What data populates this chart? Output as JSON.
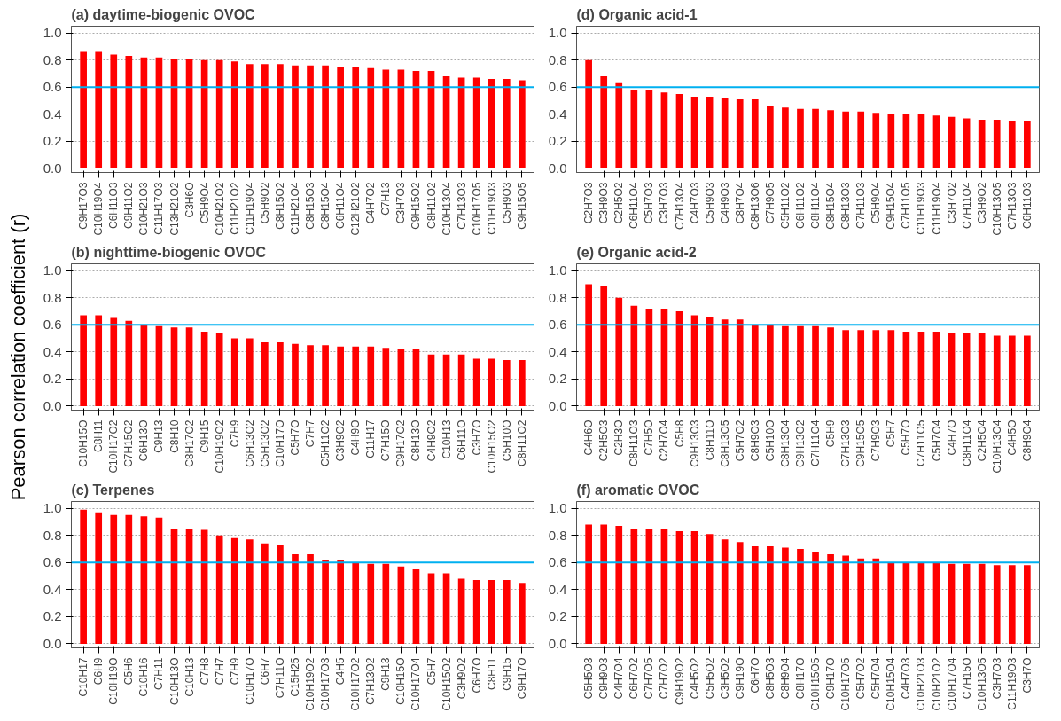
{
  "chart_data": [
    {
      "type": "bar",
      "title": "(a) daytime-biogenic OVOC",
      "color": "#ff0000",
      "categories": [
        "C9H17O3",
        "C10H19O4",
        "C6H11O3",
        "C9H11O2",
        "C10H21O3",
        "C11H17O3",
        "C13H21O2",
        "C3H6O",
        "C5H9O4",
        "C10H21O2",
        "C11H21O2",
        "C11H19O4",
        "C5H9O2",
        "C8H15O2",
        "C11H21O4",
        "C8H15O3",
        "C8H15O4",
        "C6H11O4",
        "C12H21O2",
        "C4H7O2",
        "C7H13",
        "C3H7O3",
        "C9H15O2",
        "C8H11O2",
        "C10H13O4",
        "C7H13O3",
        "C10H17O5",
        "C11H19O3",
        "C5H9O3",
        "C9H15O5"
      ],
      "values": [
        0.86,
        0.86,
        0.84,
        0.83,
        0.82,
        0.82,
        0.81,
        0.81,
        0.8,
        0.8,
        0.79,
        0.77,
        0.77,
        0.77,
        0.76,
        0.76,
        0.76,
        0.75,
        0.75,
        0.74,
        0.73,
        0.73,
        0.72,
        0.72,
        0.68,
        0.67,
        0.67,
        0.66,
        0.66,
        0.65
      ],
      "ylim": [
        -0.03,
        1.05
      ],
      "yticks": [
        {
          "value": 0,
          "label": "0.0"
        },
        {
          "value": 0.2,
          "label": "0.2"
        },
        {
          "value": 0.4,
          "label": "0.4"
        },
        {
          "value": 0.6,
          "label": "0.6"
        },
        {
          "value": 0.8,
          "label": "0.8"
        },
        {
          "value": 1,
          "label": "1.0"
        }
      ],
      "grid": "y",
      "ref_lines": [
        {
          "axis": "y",
          "value": 0.6,
          "color": "#00b0f0"
        }
      ]
    },
    {
      "type": "bar",
      "title": "(b) nighttime-biogenic OVOC",
      "ylabel": "Pearson correlation coefficient (r)",
      "color": "#ff0000",
      "categories": [
        "C10H15O",
        "C8H11",
        "C10H17O2",
        "C7H15O2",
        "C6H13O",
        "C9H13",
        "C8H10",
        "C8H17O2",
        "C9H15",
        "C10H19O2",
        "C7H9",
        "C6H13O2",
        "C5H13O2",
        "C10H17O",
        "C5H7O",
        "C7H7",
        "C5H11O2",
        "C3H9O2",
        "C4H9O",
        "C11H17",
        "C7H15O",
        "C9H17O2",
        "C8H13O",
        "C4H9O2",
        "C10H13",
        "C6H11O",
        "C3H7O",
        "C10H15O2",
        "C5H10O",
        "C8H11O2"
      ],
      "values": [
        0.67,
        0.67,
        0.65,
        0.63,
        0.6,
        0.59,
        0.58,
        0.58,
        0.55,
        0.54,
        0.5,
        0.5,
        0.47,
        0.47,
        0.46,
        0.45,
        0.45,
        0.44,
        0.44,
        0.44,
        0.43,
        0.42,
        0.42,
        0.38,
        0.38,
        0.38,
        0.35,
        0.35,
        0.34,
        0.34
      ],
      "ylim": [
        -0.03,
        1.05
      ],
      "yticks": [
        {
          "value": 0,
          "label": "0.0"
        },
        {
          "value": 0.2,
          "label": "0.2"
        },
        {
          "value": 0.4,
          "label": "0.4"
        },
        {
          "value": 0.6,
          "label": "0.6"
        },
        {
          "value": 0.8,
          "label": "0.8"
        },
        {
          "value": 1,
          "label": "1.0"
        }
      ],
      "grid": "y",
      "ref_lines": [
        {
          "axis": "y",
          "value": 0.6,
          "color": "#00b0f0"
        }
      ]
    },
    {
      "type": "bar",
      "title": "(c)   Terpenes",
      "color": "#ff0000",
      "categories": [
        "C10H17",
        "C6H9",
        "C10H19O",
        "C5H6",
        "C10H16",
        "C7H11",
        "C10H13O",
        "C10H13",
        "C7H8",
        "C7H7",
        "C7H9",
        "C10H17O",
        "C6H7",
        "C7H11O",
        "C15H25",
        "C10H19O2",
        "C10H17O3",
        "C4H5",
        "C10H17O2",
        "C7H13O2",
        "C9H13",
        "C10H15O",
        "C10H17O4",
        "C5H7",
        "C10H15O2",
        "C3H9O2",
        "C6H7O",
        "C8H11",
        "C9H15",
        "C9H17O"
      ],
      "values": [
        0.99,
        0.97,
        0.95,
        0.95,
        0.94,
        0.93,
        0.85,
        0.85,
        0.84,
        0.8,
        0.78,
        0.77,
        0.74,
        0.73,
        0.66,
        0.66,
        0.62,
        0.62,
        0.6,
        0.59,
        0.59,
        0.57,
        0.55,
        0.52,
        0.52,
        0.48,
        0.47,
        0.47,
        0.47,
        0.45
      ],
      "ylim": [
        -0.03,
        1.05
      ],
      "yticks": [
        {
          "value": 0,
          "label": "0.0"
        },
        {
          "value": 0.2,
          "label": "0.2"
        },
        {
          "value": 0.4,
          "label": "0.4"
        },
        {
          "value": 0.6,
          "label": "0.6"
        },
        {
          "value": 0.8,
          "label": "0.8"
        },
        {
          "value": 1,
          "label": "1.0"
        }
      ],
      "grid": "y",
      "ref_lines": [
        {
          "axis": "y",
          "value": 0.6,
          "color": "#00b0f0"
        }
      ]
    },
    {
      "type": "bar",
      "title": "(d)    Organic acid-1",
      "color": "#ff0000",
      "categories": [
        "C2H7O3",
        "C3H9O3",
        "C2H5O2",
        "C6H11O4",
        "C5H7O3",
        "C3H7O3",
        "C7H13O4",
        "C4H7O3",
        "C5H9O3",
        "C4H9O3",
        "C8H7O4",
        "C8H13O6",
        "C7H9O5",
        "C5H11O2",
        "C6H11O2",
        "C8H11O4",
        "C8H15O4",
        "C8H13O3",
        "C7H11O3",
        "C5H9O4",
        "C9H15O4",
        "C7H11O5",
        "C11H19O3",
        "C11H19O4",
        "C3H7O2",
        "C7H11O4",
        "C3H9O2",
        "C10H13O5",
        "C7H13O3",
        "C6H11O3"
      ],
      "values": [
        0.8,
        0.68,
        0.63,
        0.58,
        0.58,
        0.56,
        0.55,
        0.53,
        0.53,
        0.52,
        0.51,
        0.51,
        0.46,
        0.45,
        0.44,
        0.44,
        0.43,
        0.42,
        0.42,
        0.41,
        0.4,
        0.4,
        0.4,
        0.39,
        0.38,
        0.37,
        0.36,
        0.36,
        0.35,
        0.35
      ],
      "ylim": [
        -0.03,
        1.05
      ],
      "yticks": [
        {
          "value": 0,
          "label": "0.0"
        },
        {
          "value": 0.2,
          "label": "0.2"
        },
        {
          "value": 0.4,
          "label": "0.4"
        },
        {
          "value": 0.6,
          "label": "0.6"
        },
        {
          "value": 0.8,
          "label": "0.8"
        },
        {
          "value": 1,
          "label": "1.0"
        }
      ],
      "grid": "y",
      "ref_lines": [
        {
          "axis": "y",
          "value": 0.6,
          "color": "#00b0f0"
        }
      ]
    },
    {
      "type": "bar",
      "title": "(e)    Organic acid-2",
      "color": "#ff0000",
      "categories": [
        "C4H6O",
        "C2H5O3",
        "C2H3O",
        "C8H11O3",
        "C7H5O",
        "C2H7O4",
        "C5H8",
        "C9H13O3",
        "C8H11O",
        "C8H13O5",
        "C5H7O2",
        "C8H9O3",
        "C5H10O",
        "C8H13O4",
        "C9H13O2",
        "C7H11O4",
        "C5H9",
        "C7H13O3",
        "C9H15O5",
        "C7H9O3",
        "C5H7",
        "C5H7O",
        "C7H11O5",
        "C5H7O4",
        "C4H7O",
        "C8H11O4",
        "C2H5O4",
        "C10H13O4",
        "C4H5O",
        "C8H9O4"
      ],
      "values": [
        0.9,
        0.89,
        0.8,
        0.74,
        0.72,
        0.72,
        0.7,
        0.67,
        0.66,
        0.64,
        0.64,
        0.6,
        0.6,
        0.59,
        0.59,
        0.59,
        0.58,
        0.56,
        0.56,
        0.56,
        0.56,
        0.55,
        0.55,
        0.55,
        0.54,
        0.54,
        0.54,
        0.52,
        0.52,
        0.52
      ],
      "ylim": [
        -0.03,
        1.05
      ],
      "yticks": [
        {
          "value": 0,
          "label": "0.0"
        },
        {
          "value": 0.2,
          "label": "0.2"
        },
        {
          "value": 0.4,
          "label": "0.4"
        },
        {
          "value": 0.6,
          "label": "0.6"
        },
        {
          "value": 0.8,
          "label": "0.8"
        },
        {
          "value": 1,
          "label": "1.0"
        }
      ],
      "grid": "y",
      "ref_lines": [
        {
          "axis": "y",
          "value": 0.6,
          "color": "#00b0f0"
        }
      ]
    },
    {
      "type": "bar",
      "title": "(f) aromatic OVOC",
      "color": "#ff0000",
      "categories": [
        "C5H5O3",
        "C9H9O3",
        "C4H7O4",
        "C6H7O2",
        "C7H7O5",
        "C7H7O2",
        "C9H19O2",
        "C4H5O2",
        "C5H5O2",
        "C3H5O2",
        "C9H19O",
        "C6H7O",
        "C8H5O3",
        "C8H9O4",
        "C8H17O",
        "C10H15O5",
        "C9H17O",
        "C10H17O5",
        "C5H7O2",
        "C5H7O4",
        "C10H15O4",
        "C4H7O3",
        "C10H21O3",
        "C10H21O2",
        "C10H17O4",
        "C7H15O",
        "C10H13O5",
        "C3H7O3",
        "C11H19O3",
        "C3H7O"
      ],
      "values": [
        0.88,
        0.88,
        0.87,
        0.85,
        0.85,
        0.85,
        0.83,
        0.83,
        0.81,
        0.77,
        0.75,
        0.72,
        0.72,
        0.71,
        0.7,
        0.68,
        0.66,
        0.65,
        0.63,
        0.63,
        0.6,
        0.6,
        0.6,
        0.6,
        0.59,
        0.59,
        0.59,
        0.58,
        0.58,
        0.58
      ],
      "ylim": [
        -0.03,
        1.05
      ],
      "yticks": [
        {
          "value": 0,
          "label": "0.0"
        },
        {
          "value": 0.2,
          "label": "0.2"
        },
        {
          "value": 0.4,
          "label": "0.4"
        },
        {
          "value": 0.6,
          "label": "0.6"
        },
        {
          "value": 0.8,
          "label": "0.8"
        },
        {
          "value": 1,
          "label": "1.0"
        }
      ],
      "grid": "y",
      "ref_lines": [
        {
          "axis": "y",
          "value": 0.6,
          "color": "#00b0f0"
        }
      ]
    }
  ]
}
